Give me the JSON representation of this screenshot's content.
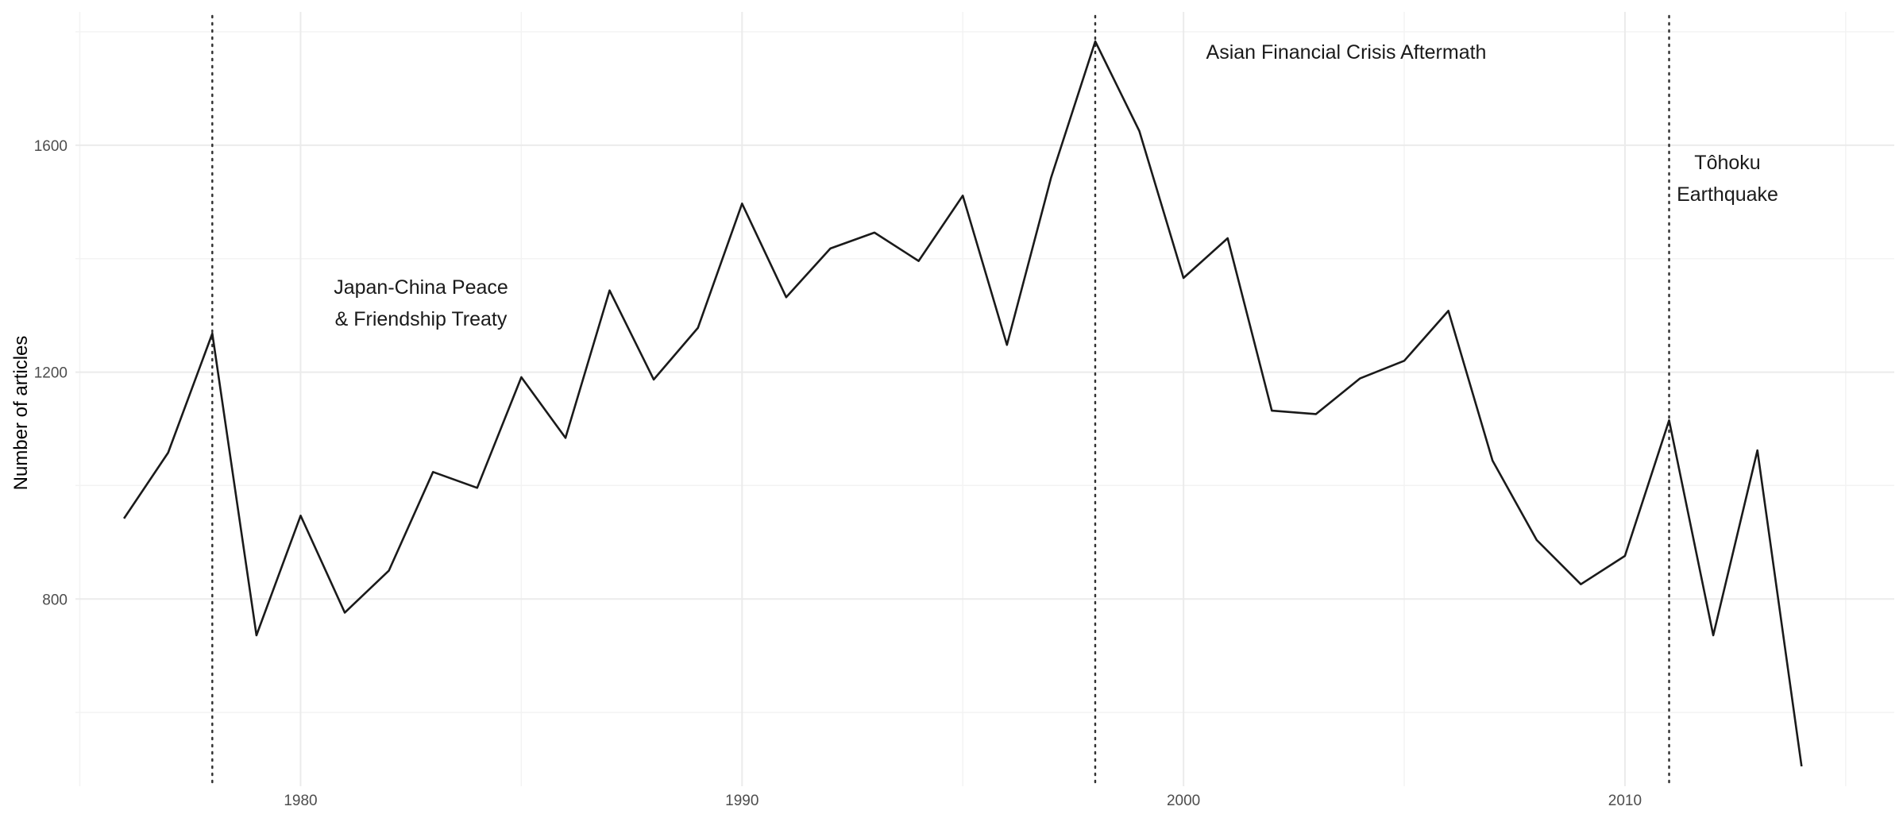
{
  "chart_data": {
    "type": "line",
    "title": "",
    "xlabel": "",
    "ylabel": "Number of articles",
    "xlim": [
      1974.9,
      2016.1
    ],
    "ylim": [
      470,
      1835
    ],
    "x_ticks": [
      1980,
      1990,
      2000,
      2010
    ],
    "x_minor_ticks": [
      1975,
      1985,
      1995,
      2005,
      2015
    ],
    "y_ticks": [
      800,
      1200,
      1600
    ],
    "y_minor_ticks": [
      600,
      1000,
      1400,
      1800
    ],
    "grid": true,
    "legend": "none",
    "x": [
      1976,
      1977,
      1978,
      1979,
      1980,
      1981,
      1982,
      1983,
      1984,
      1985,
      1986,
      1987,
      1988,
      1989,
      1990,
      1991,
      1992,
      1993,
      1994,
      1995,
      1996,
      1997,
      1998,
      1999,
      2000,
      2001,
      2002,
      2003,
      2004,
      2005,
      2006,
      2007,
      2008,
      2009,
      2010,
      2011,
      2012,
      2013,
      2014
    ],
    "series": [
      {
        "values": [
          942,
          1058,
          1268,
          736,
          947,
          776,
          850,
          1024,
          996,
          1191,
          1084,
          1344,
          1187,
          1278,
          1497,
          1332,
          1418,
          1446,
          1396,
          1511,
          1248,
          1543,
          1783,
          1625,
          1366,
          1436,
          1132,
          1126,
          1189,
          1220,
          1308,
          1044,
          904,
          826,
          876,
          1115,
          736,
          1062,
          505
        ]
      }
    ],
    "events": [
      {
        "x": 1978,
        "label_lines": [
          "Japan-China Peace",
          "& Friendship Treaty"
        ]
      },
      {
        "x": 1998,
        "label_lines": [
          "Asian Financial Crisis Aftermath"
        ]
      },
      {
        "x": 2011,
        "label_lines": [
          "Tôhoku",
          "Earthquake"
        ]
      }
    ]
  }
}
